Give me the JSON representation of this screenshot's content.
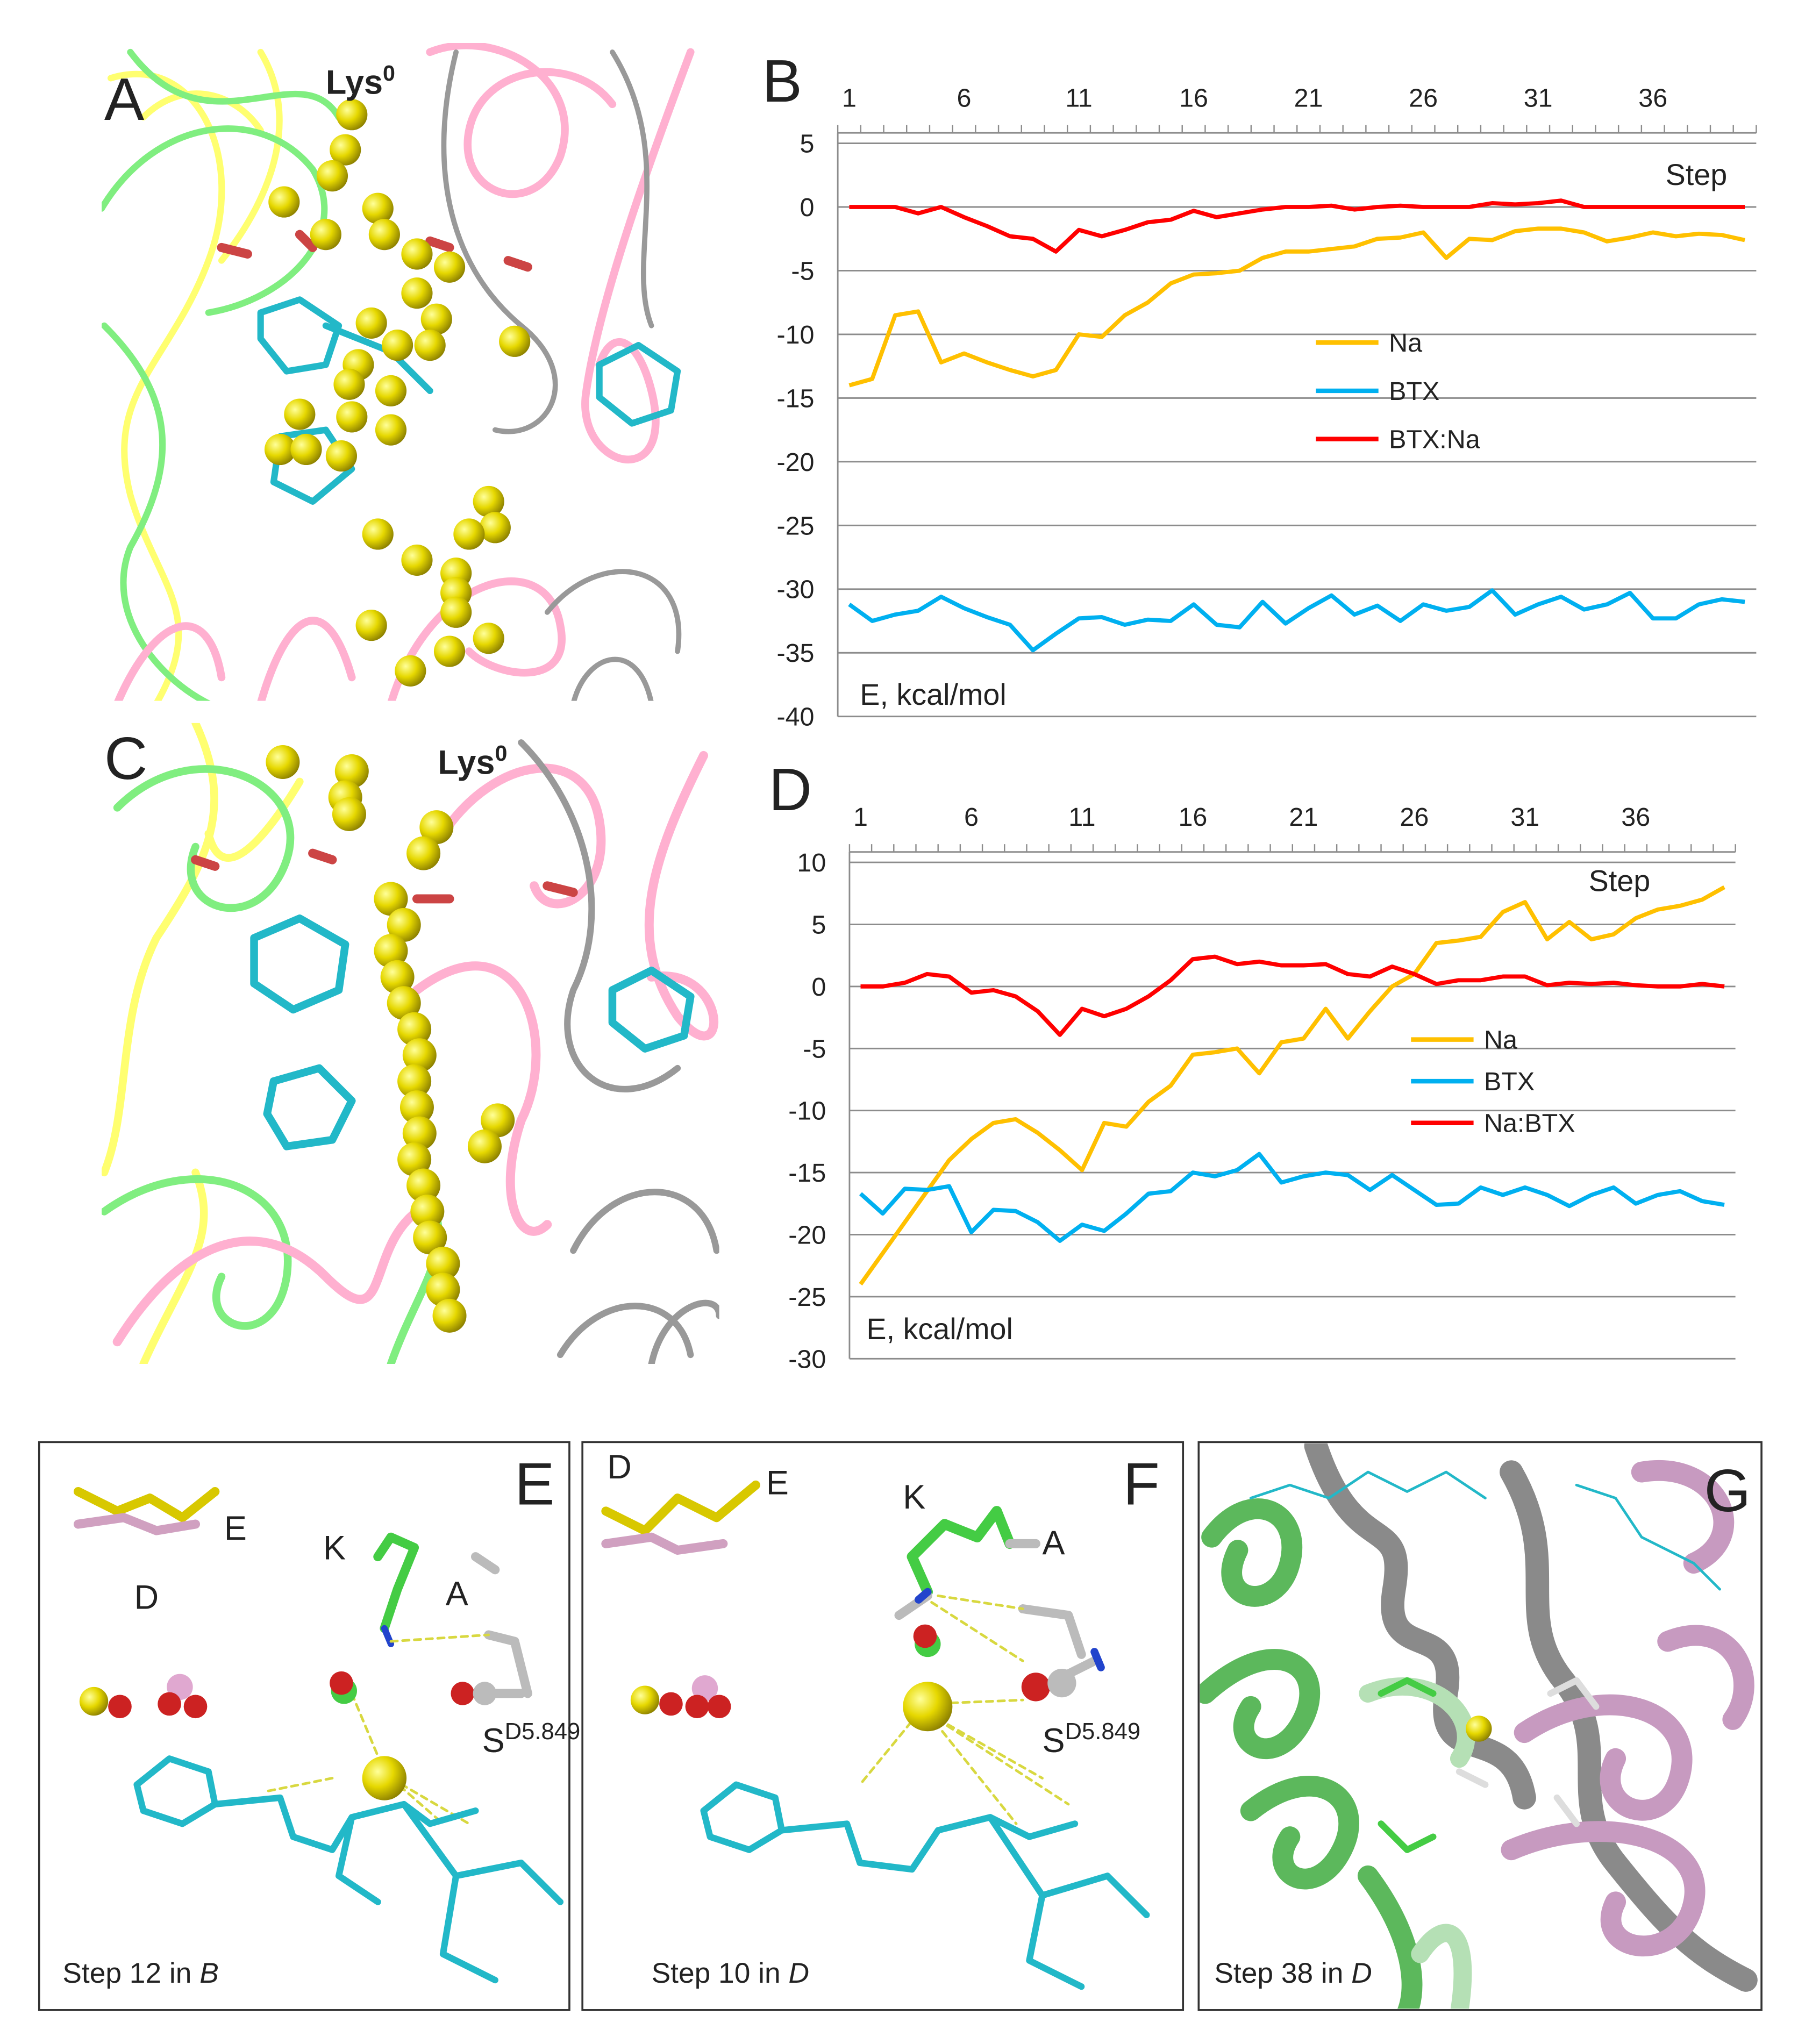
{
  "chart_data": [
    {
      "type": "line",
      "panel": "B",
      "x_label": "Step",
      "y_label": "E, kcal/mol",
      "categories": [
        1,
        null,
        null,
        null,
        null,
        6,
        null,
        null,
        null,
        null,
        11,
        null,
        null,
        null,
        null,
        16,
        null,
        null,
        null,
        null,
        21,
        null,
        null,
        null,
        null,
        26,
        null,
        null,
        null,
        null,
        31,
        null,
        null,
        null,
        null,
        36,
        null,
        null,
        null,
        null
      ],
      "ylim": [
        -40,
        5
      ],
      "yticks": [
        -40,
        -35,
        -30,
        -25,
        -20,
        -15,
        -10,
        -5,
        0,
        5
      ],
      "grid": true,
      "legend": "center-right",
      "series": [
        {
          "name": "Na",
          "color": "#ffc000",
          "values": [
            -14,
            -13.5,
            -8.5,
            -8.2,
            -12.2,
            -11.5,
            -12.2,
            -12.8,
            -13.3,
            -12.8,
            -10,
            -10.2,
            -8.5,
            -7.5,
            -6,
            -5.3,
            -5.2,
            -5,
            -4,
            -3.5,
            -3.5,
            -3.3,
            -3.1,
            -2.5,
            -2.4,
            -2,
            -4,
            -2.5,
            -2.6,
            -1.9,
            -1.7,
            -1.7,
            -2,
            -2.7,
            -2.4,
            -2,
            -2.3,
            -2.1,
            -2.2,
            -2.6
          ]
        },
        {
          "name": "BTX",
          "color": "#00b0f0",
          "values": [
            -31.2,
            -32.5,
            -32,
            -31.7,
            -30.6,
            -31.5,
            -32.2,
            -32.8,
            -34.8,
            -33.5,
            -32.3,
            -32.2,
            -32.8,
            -32.4,
            -32.5,
            -31.2,
            -32.8,
            -33,
            -31,
            -32.7,
            -31.5,
            -30.5,
            -32,
            -31.3,
            -32.5,
            -31.2,
            -31.7,
            -31.4,
            -30.1,
            -32,
            -31.2,
            -30.6,
            -31.6,
            -31.2,
            -30.3,
            -32.3,
            -32.3,
            -31.2,
            -30.8,
            -31
          ]
        },
        {
          "name": "BTX:Na",
          "color": "#ff0000",
          "values": [
            0,
            0,
            0,
            -0.5,
            0,
            -0.8,
            -1.5,
            -2.3,
            -2.5,
            -3.5,
            -1.8,
            -2.3,
            -1.8,
            -1.2,
            -1,
            -0.3,
            -0.8,
            -0.5,
            -0.2,
            0,
            0,
            0.1,
            -0.2,
            0,
            0.1,
            0,
            0,
            0,
            0.3,
            0.2,
            0.3,
            0.5,
            0,
            0,
            0,
            0,
            0,
            0,
            0,
            0
          ]
        }
      ]
    },
    {
      "type": "line",
      "panel": "D",
      "x_label": "Step",
      "y_label": "E, kcal/mol",
      "categories": [
        1,
        null,
        null,
        null,
        null,
        6,
        null,
        null,
        null,
        null,
        11,
        null,
        null,
        null,
        null,
        16,
        null,
        null,
        null,
        null,
        21,
        null,
        null,
        null,
        null,
        26,
        null,
        null,
        null,
        null,
        31,
        null,
        null,
        null,
        null,
        36,
        null,
        null,
        null,
        null
      ],
      "ylim": [
        -30,
        10
      ],
      "yticks": [
        -30,
        -25,
        -20,
        -15,
        -10,
        -5,
        0,
        5,
        10
      ],
      "grid": true,
      "legend": "center-right",
      "series": [
        {
          "name": "Na",
          "color": "#ffc000",
          "values": [
            -24,
            -21.5,
            -19,
            -16.5,
            -14,
            -12.3,
            -11,
            -10.7,
            -11.8,
            -13.2,
            -14.8,
            -11,
            -11.3,
            -9.3,
            -8,
            -5.5,
            -5.3,
            -5,
            -7,
            -4.5,
            -4.2,
            -1.8,
            -4.2,
            -2,
            0,
            1,
            3.5,
            3.7,
            4,
            6,
            6.8,
            3.8,
            5.2,
            3.8,
            4.2,
            5.5,
            6.2,
            6.5,
            7,
            8
          ]
        },
        {
          "name": "BTX",
          "color": "#00b0f0",
          "values": [
            -16.7,
            -18.3,
            -16.3,
            -16.4,
            -16.1,
            -19.8,
            -18,
            -18.1,
            -19,
            -20.5,
            -19.2,
            -19.7,
            -18.3,
            -16.7,
            -16.5,
            -15,
            -15.3,
            -14.8,
            -13.5,
            -15.8,
            -15.3,
            -15,
            -15.2,
            -16.4,
            -15.2,
            -16.4,
            -17.6,
            -17.5,
            -16.2,
            -16.8,
            -16.2,
            -16.8,
            -17.7,
            -16.8,
            -16.2,
            -17.5,
            -16.8,
            -16.5,
            -17.3,
            -17.6
          ]
        },
        {
          "name": "Na:BTX",
          "color": "#ff0000",
          "values": [
            0,
            0,
            0.3,
            1,
            0.8,
            -0.5,
            -0.3,
            -0.8,
            -2,
            -3.9,
            -1.8,
            -2.4,
            -1.8,
            -0.8,
            0.5,
            2.2,
            2.4,
            1.8,
            2,
            1.7,
            1.7,
            1.8,
            1,
            0.8,
            1.6,
            1,
            0.2,
            0.5,
            0.5,
            0.8,
            0.8,
            0.1,
            0.3,
            0.2,
            0.3,
            0.1,
            0,
            0,
            0.2,
            0
          ]
        }
      ]
    }
  ],
  "panels": {
    "A": {
      "label": "A",
      "lys": "Lys",
      "lys_sup": "0"
    },
    "C": {
      "label": "C",
      "lys": "Lys",
      "lys_sup": "0"
    },
    "E": {
      "label": "E",
      "res_e": "E",
      "res_k": "K",
      "res_d": "D",
      "res_a": "A",
      "serine": "S",
      "serine_sup": "D5.849",
      "caption": "Step 12 in",
      "caption_ref": "B"
    },
    "F": {
      "label": "F",
      "res_d": "D",
      "res_e": "E",
      "res_k": "K",
      "res_a": "A",
      "serine": "S",
      "serine_sup": "D5.849",
      "caption": "Step 10 in",
      "caption_ref": "D"
    },
    "G": {
      "label": "G",
      "caption": "Step 38 in",
      "caption_ref": "D"
    }
  }
}
